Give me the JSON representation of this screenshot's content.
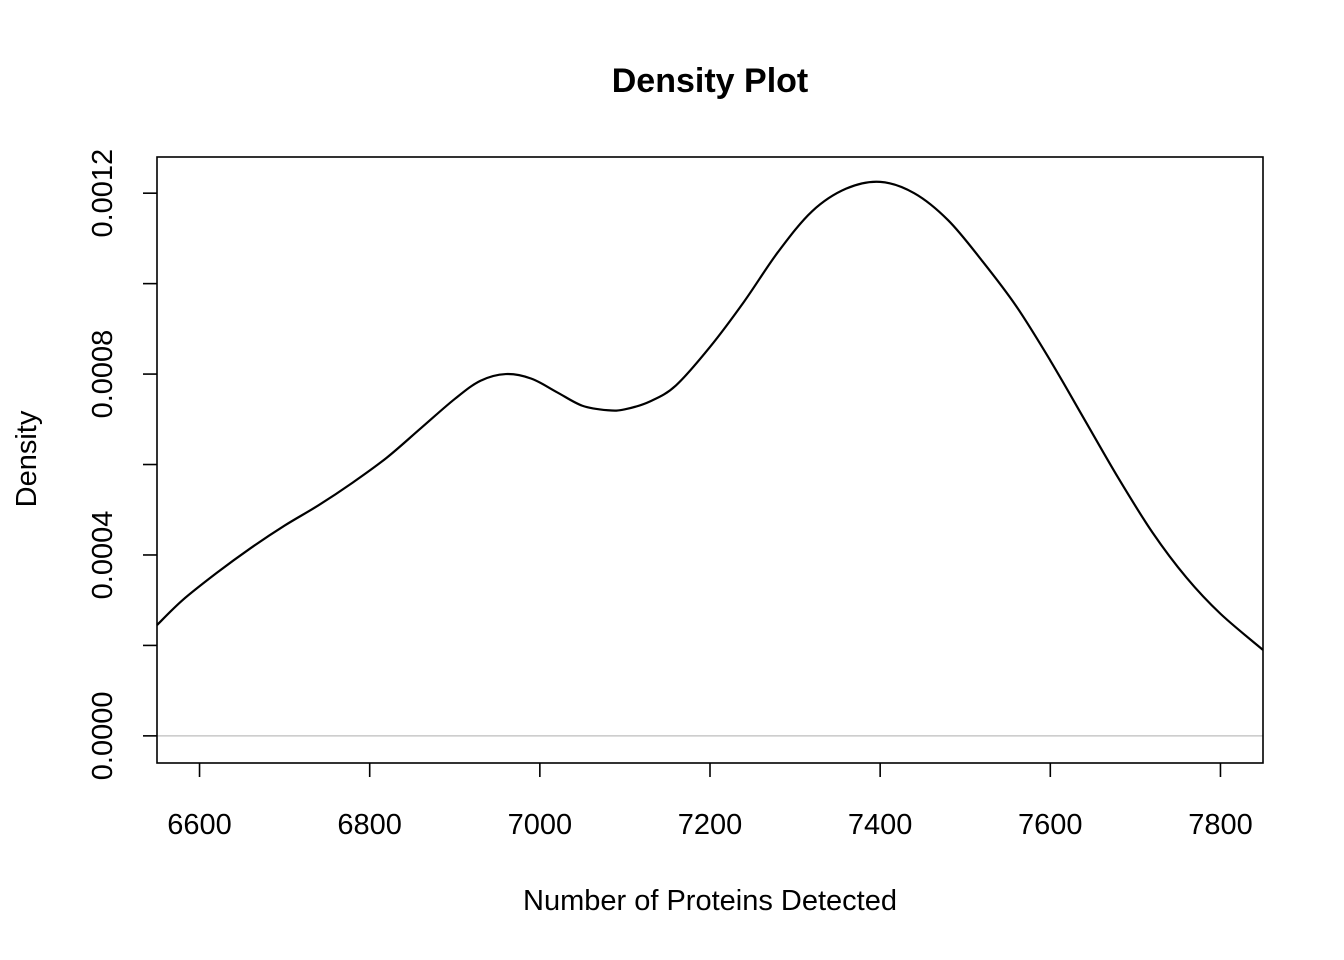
{
  "chart_data": {
    "type": "line",
    "title": "Density Plot",
    "xlabel": "Number of Proteins Detected",
    "ylabel": "Density",
    "xlim": [
      6550,
      7850
    ],
    "ylim": [
      -6e-05,
      0.00128
    ],
    "x_ticks": [
      6600,
      6800,
      7000,
      7200,
      7400,
      7600,
      7800
    ],
    "x_tick_labels": [
      "6600",
      "6800",
      "7000",
      "7200",
      "7400",
      "7600",
      "7800"
    ],
    "y_ticks": [
      0,
      0.0002,
      0.0004,
      0.0006,
      0.0008,
      0.001,
      0.0012
    ],
    "y_tick_labels": [
      "0.0000",
      "",
      "0.0004",
      "",
      "0.0008",
      "",
      "0.0012"
    ],
    "baseline": {
      "y": 0,
      "color": "#bebebe"
    },
    "grid": false,
    "line_color": "#000000",
    "series": [
      {
        "x": [
          6550,
          6580,
          6620,
          6660,
          6700,
          6740,
          6780,
          6820,
          6860,
          6900,
          6930,
          6960,
          6990,
          7020,
          7050,
          7080,
          7100,
          7130,
          7160,
          7200,
          7240,
          7280,
          7320,
          7360,
          7400,
          7440,
          7480,
          7520,
          7560,
          7600,
          7640,
          7680,
          7720,
          7760,
          7800,
          7850
        ],
        "y": [
          0.000245,
          0.0003,
          0.00036,
          0.000415,
          0.000465,
          0.00051,
          0.00056,
          0.000615,
          0.00068,
          0.000745,
          0.000785,
          0.0008,
          0.00079,
          0.00076,
          0.00073,
          0.00072,
          0.000722,
          0.00074,
          0.000775,
          0.00086,
          0.00096,
          0.00107,
          0.00116,
          0.00121,
          0.001225,
          0.0012,
          0.00114,
          0.00105,
          0.00095,
          0.00083,
          0.0007,
          0.00057,
          0.00045,
          0.00035,
          0.00027,
          0.00019
        ]
      }
    ]
  }
}
